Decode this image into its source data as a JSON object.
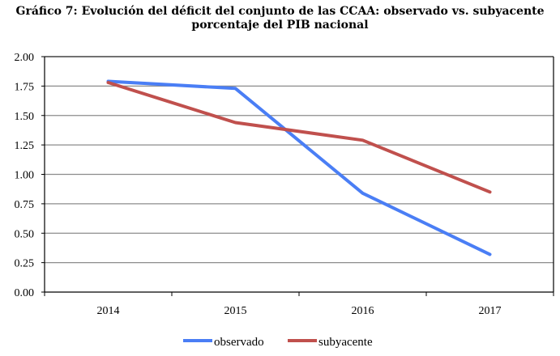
{
  "chart_data": {
    "type": "line",
    "title": "Gráfico 7: Evolución del déficit del conjunto de las CCAA: observado vs. subyacente",
    "subtitle": "porcentaje del PIB nacional",
    "categories": [
      "2014",
      "2015",
      "2016",
      "2017"
    ],
    "series": [
      {
        "name": "observado",
        "color": "#4a7ef5",
        "values": [
          1.79,
          1.73,
          0.84,
          0.32
        ]
      },
      {
        "name": "subyacente",
        "color": "#c0504d",
        "values": [
          1.78,
          1.44,
          1.29,
          0.85
        ]
      }
    ],
    "ylim": [
      0,
      2
    ],
    "yticks": [
      "0.00",
      "0.25",
      "0.50",
      "0.75",
      "1.00",
      "1.25",
      "1.50",
      "1.75",
      "2.00"
    ],
    "grid": true,
    "legend": "bottom"
  }
}
